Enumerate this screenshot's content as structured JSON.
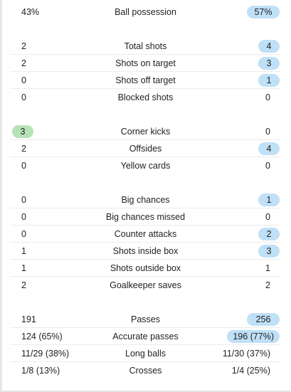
{
  "groups": [
    {
      "rows": [
        {
          "home": "43%",
          "label": "Ball possession",
          "away": "57%",
          "highlight": "away"
        }
      ]
    },
    {
      "rows": [
        {
          "home": "2",
          "label": "Total shots",
          "away": "4",
          "highlight": "away"
        },
        {
          "home": "2",
          "label": "Shots on target",
          "away": "3",
          "highlight": "away"
        },
        {
          "home": "0",
          "label": "Shots off target",
          "away": "1",
          "highlight": "away"
        },
        {
          "home": "0",
          "label": "Blocked shots",
          "away": "0",
          "highlight": "none"
        }
      ]
    },
    {
      "rows": [
        {
          "home": "3",
          "label": "Corner kicks",
          "away": "0",
          "highlight": "home"
        },
        {
          "home": "2",
          "label": "Offsides",
          "away": "4",
          "highlight": "away"
        },
        {
          "home": "0",
          "label": "Yellow cards",
          "away": "0",
          "highlight": "none"
        }
      ]
    },
    {
      "rows": [
        {
          "home": "0",
          "label": "Big chances",
          "away": "1",
          "highlight": "away"
        },
        {
          "home": "0",
          "label": "Big chances missed",
          "away": "0",
          "highlight": "none"
        },
        {
          "home": "0",
          "label": "Counter attacks",
          "away": "2",
          "highlight": "away"
        },
        {
          "home": "1",
          "label": "Shots inside box",
          "away": "3",
          "highlight": "away"
        },
        {
          "home": "1",
          "label": "Shots outside box",
          "away": "1",
          "highlight": "none"
        },
        {
          "home": "2",
          "label": "Goalkeeper saves",
          "away": "2",
          "highlight": "none"
        }
      ]
    },
    {
      "rows": [
        {
          "home": "191",
          "label": "Passes",
          "away": "256",
          "highlight": "away"
        },
        {
          "home": "124 (65%)",
          "label": "Accurate passes",
          "away": "196 (77%)",
          "highlight": "away"
        },
        {
          "home": "11/29 (38%)",
          "label": "Long balls",
          "away": "11/30 (37%)",
          "highlight": "none"
        },
        {
          "home": "1/8 (13%)",
          "label": "Crosses",
          "away": "1/4 (25%)",
          "highlight": "none"
        }
      ]
    }
  ],
  "colors": {
    "away_highlight": "#bfe0f7",
    "home_highlight": "#b6e3b6"
  }
}
